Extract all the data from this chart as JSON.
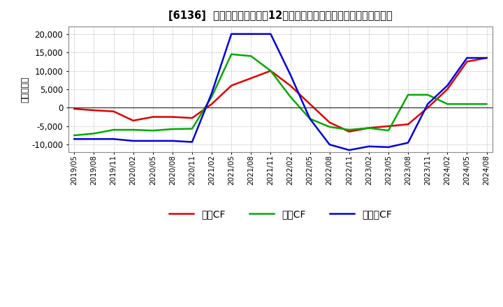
{
  "title": "[6136]  キャッシュフローの12か月移動合計の対前年同期増減額の推移",
  "ylabel": "（百万円）",
  "background_color": "#ffffff",
  "plot_background": "#ffffff",
  "grid_color": "#aaaaaa",
  "ylim": [
    -12000,
    22000
  ],
  "yticks": [
    -10000,
    -5000,
    0,
    5000,
    10000,
    15000,
    20000
  ],
  "x_labels": [
    "2019/05",
    "2019/08",
    "2019/11",
    "2020/02",
    "2020/05",
    "2020/08",
    "2020/11",
    "2021/02",
    "2021/05",
    "2021/08",
    "2021/11",
    "2022/02",
    "2022/05",
    "2022/08",
    "2022/11",
    "2023/02",
    "2023/05",
    "2023/08",
    "2023/11",
    "2024/02",
    "2024/05",
    "2024/08"
  ],
  "series": {
    "営業CF": {
      "color": "#dd0000",
      "data": [
        -300,
        -700,
        -1000,
        -3500,
        -2500,
        -2500,
        -2800,
        1000,
        6000,
        8000,
        10000,
        6000,
        1000,
        -4000,
        -6500,
        -5500,
        -5000,
        -4500,
        0,
        5000,
        12500,
        13500
      ]
    },
    "投資CF": {
      "color": "#00aa00",
      "data": [
        -7500,
        -7000,
        -6000,
        -6000,
        -6200,
        -5800,
        -5700,
        3000,
        14500,
        14000,
        10000,
        3000,
        -3000,
        -5200,
        -6000,
        -5500,
        -6200,
        3500,
        3500,
        1000,
        1000,
        1000
      ]
    },
    "フリーCF": {
      "color": "#0000dd",
      "data": [
        -8500,
        -8500,
        -8500,
        -9000,
        -9000,
        -9000,
        -9300,
        4000,
        20000,
        20000,
        20000,
        9000,
        -3000,
        -10000,
        -11500,
        -10500,
        -10700,
        -9500,
        1000,
        6000,
        13500,
        13500
      ]
    }
  },
  "legend_labels": [
    "営業CF",
    "投資CF",
    "フリーCF"
  ],
  "line_width": 1.8
}
